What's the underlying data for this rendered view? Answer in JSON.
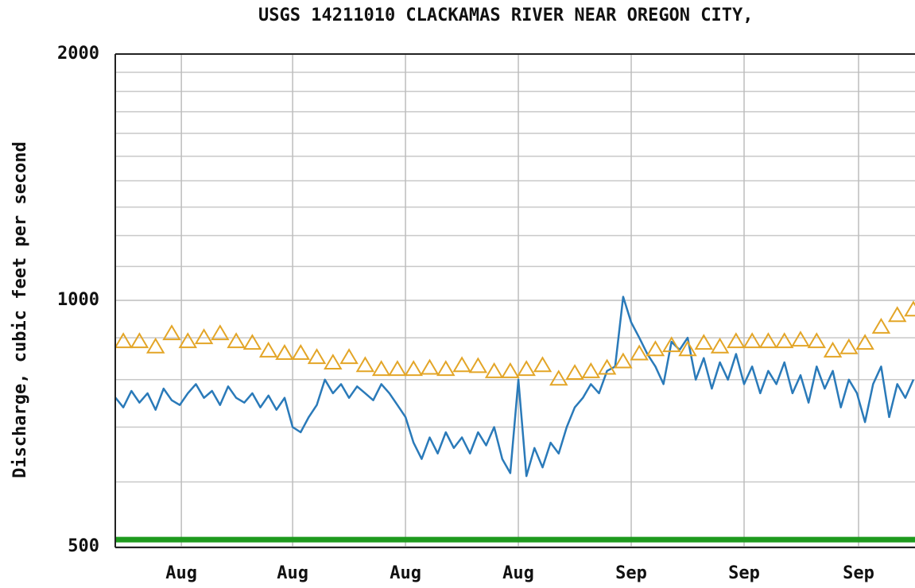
{
  "chart_data": {
    "type": "line",
    "title": "USGS 14211010 CLACKAMAS RIVER NEAR OREGON CITY,",
    "ylabel": "Discharge, cubic feet per second",
    "ylog": true,
    "ylim": [
      500,
      2000
    ],
    "yticks": [
      500,
      1000,
      2000
    ],
    "minor_yticks": [
      600,
      700,
      800,
      900,
      1100,
      1200,
      1300,
      1400,
      1500,
      1600,
      1700,
      1800,
      1900
    ],
    "xlim": [
      0,
      49.6
    ],
    "xticks": [
      {
        "value": 4.1,
        "label": "Aug"
      },
      {
        "value": 11,
        "label": "Aug"
      },
      {
        "value": 18,
        "label": "Aug"
      },
      {
        "value": 25,
        "label": "Aug"
      },
      {
        "value": 32,
        "label": "Sep"
      },
      {
        "value": 39,
        "label": "Sep"
      },
      {
        "value": 46.1,
        "label": "Sep"
      }
    ],
    "grid": true,
    "series": [
      {
        "color": "#2a7ab9",
        "marker": "none",
        "x": [
          0,
          0.5,
          1,
          1.5,
          2,
          2.5,
          3,
          3.5,
          4,
          4.5,
          5,
          5.5,
          6,
          6.5,
          7,
          7.5,
          8,
          8.5,
          9,
          9.5,
          10,
          10.5,
          11,
          11.5,
          12,
          12.5,
          13,
          13.5,
          14,
          14.5,
          15,
          15.5,
          16,
          16.5,
          17,
          17.5,
          18,
          18.5,
          19,
          19.5,
          20,
          20.5,
          21,
          21.5,
          22,
          22.5,
          23,
          23.5,
          24,
          24.5,
          25,
          25.5,
          26,
          26.5,
          27,
          27.5,
          28,
          28.5,
          29,
          29.5,
          30,
          30.5,
          31,
          31.5,
          32,
          32.5,
          33,
          33.5,
          34,
          34.5,
          35,
          35.5,
          36,
          36.5,
          37,
          37.5,
          38,
          38.5,
          39,
          39.5,
          40,
          40.5,
          41,
          41.5,
          42,
          42.5,
          43,
          43.5,
          44,
          44.5,
          45,
          45.5,
          46,
          46.5,
          47,
          47.5,
          48,
          48.5,
          49,
          49.5
        ],
        "values": [
          761,
          740,
          775,
          750,
          770,
          735,
          780,
          755,
          745,
          770,
          790,
          760,
          775,
          745,
          785,
          760,
          750,
          770,
          740,
          765,
          735,
          760,
          700,
          690,
          720,
          745,
          800,
          770,
          790,
          760,
          785,
          770,
          755,
          790,
          770,
          745,
          720,
          670,
          640,
          680,
          650,
          690,
          660,
          680,
          650,
          690,
          665,
          700,
          640,
          615,
          800,
          610,
          660,
          625,
          670,
          650,
          700,
          740,
          760,
          790,
          770,
          820,
          830,
          1010,
          940,
          900,
          860,
          830,
          790,
          890,
          870,
          900,
          800,
          850,
          780,
          840,
          800,
          860,
          790,
          830,
          770,
          820,
          790,
          840,
          770,
          810,
          750,
          830,
          780,
          820,
          740,
          800,
          770,
          710,
          790,
          830,
          720,
          790,
          760,
          800
        ]
      },
      {
        "color": "#e3a527",
        "marker": "triangle",
        "x": [
          0.5,
          1.5,
          2.5,
          3.5,
          4.5,
          5.5,
          6.5,
          7.5,
          8.5,
          9.5,
          10.5,
          11.5,
          12.5,
          13.5,
          14.5,
          15.5,
          16.5,
          17.5,
          18.5,
          19.5,
          20.5,
          21.5,
          22.5,
          23.5,
          24.5,
          25.5,
          26.5,
          27.5,
          28.5,
          29.5,
          30.5,
          31.5,
          32.5,
          33.5,
          34.5,
          35.5,
          36.5,
          37.5,
          38.5,
          39.5,
          40.5,
          41.5,
          42.5,
          43.5,
          44.5,
          45.5,
          46.5,
          47.5,
          48.5,
          49.5
        ],
        "values": [
          890,
          890,
          877,
          910,
          890,
          900,
          910,
          890,
          886,
          867,
          861,
          861,
          851,
          838,
          851,
          832,
          823,
          823,
          823,
          826,
          823,
          832,
          830,
          818,
          818,
          823,
          832,
          801,
          814,
          818,
          826,
          841,
          860,
          870,
          880,
          870,
          886,
          877,
          890,
          890,
          890,
          890,
          894,
          890,
          867,
          875,
          886,
          927,
          958,
          973
        ]
      },
      {
        "color": "#1e9a1e",
        "marker": "none",
        "width": 7,
        "x": [
          0,
          49.6
        ],
        "values": [
          510,
          510
        ]
      }
    ]
  }
}
